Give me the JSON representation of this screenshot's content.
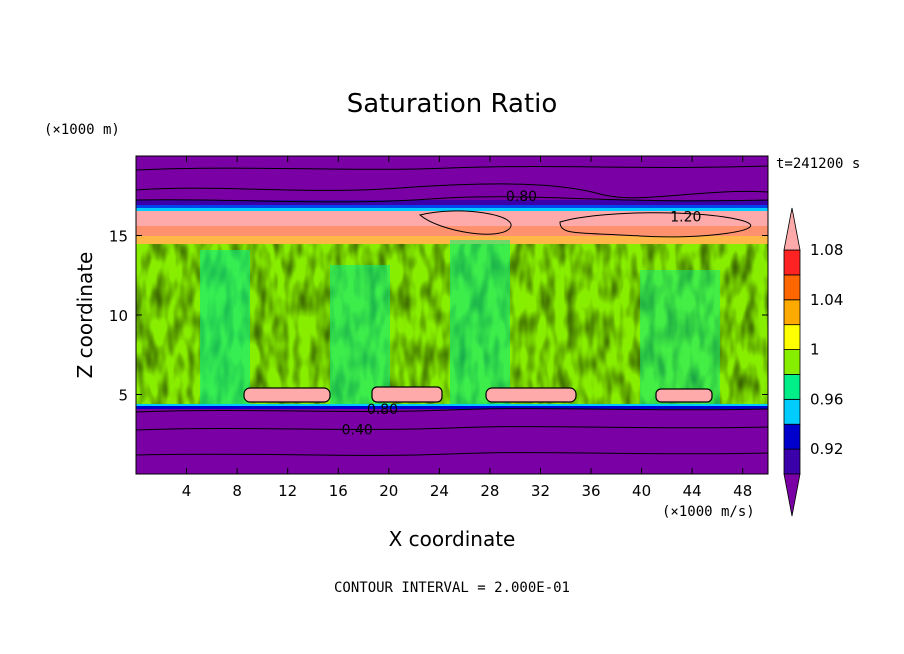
{
  "chart_data": {
    "type": "heatmap",
    "title": "Saturation Ratio",
    "xlabel": "X coordinate",
    "ylabel": "Z coordinate",
    "x_unit": "(×1000 m/s)",
    "y_unit": "(×1000 m)",
    "time_label": "t=241200 s",
    "footer": "CONTOUR INTERVAL = 2.000E-01",
    "xlim": [
      0,
      50
    ],
    "ylim": [
      0,
      20
    ],
    "x_ticks": [
      "4",
      "8",
      "12",
      "16",
      "20",
      "24",
      "28",
      "32",
      "36",
      "40",
      "44",
      "48"
    ],
    "y_ticks": [
      "5",
      "10",
      "15"
    ],
    "y_tick_values": [
      5,
      10,
      15
    ],
    "x_tick_values": [
      4,
      8,
      12,
      16,
      20,
      24,
      28,
      32,
      36,
      40,
      44,
      48
    ],
    "colorbar": {
      "labels": [
        "0.92",
        "0.96",
        "1",
        "1.04",
        "1.08"
      ],
      "levels": [
        0.92,
        0.96,
        1.0,
        1.04,
        1.08
      ],
      "colors": [
        "#7a00a6",
        "#3b00aa",
        "#0000cc",
        "#00ccff",
        "#00ee88",
        "#88ee00",
        "#ffff00",
        "#ffaa00",
        "#ff6600",
        "#ff2222",
        "#ffaaaa"
      ]
    },
    "contour_labels": [
      {
        "text": "0.80",
        "x": 30.5,
        "z": 17.5
      },
      {
        "text": "1.20",
        "x": 43.5,
        "z": 16.2
      },
      {
        "text": "0.80",
        "x": 19.5,
        "z": 4.1
      },
      {
        "text": "0.40",
        "x": 17.5,
        "z": 2.8
      }
    ]
  }
}
